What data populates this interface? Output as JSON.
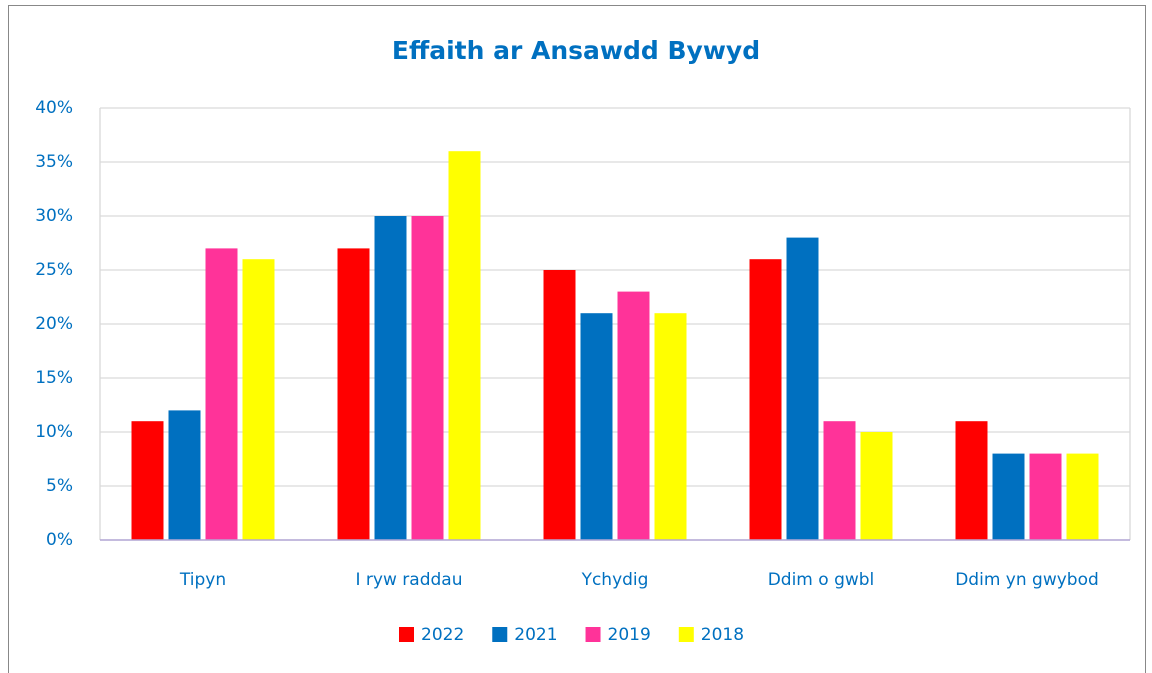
{
  "chart_data": {
    "type": "bar",
    "title": "Effaith ar Ansawdd Bywyd",
    "categories": [
      "Tipyn",
      "I ryw raddau",
      "Ychydig",
      "Ddim o gwbl",
      "Ddim yn gwybod"
    ],
    "series": [
      {
        "name": "2022",
        "color": "#ff0000",
        "values": [
          11,
          27,
          25,
          26,
          11
        ]
      },
      {
        "name": "2021",
        "color": "#0070c0",
        "values": [
          12,
          30,
          21,
          28,
          8
        ]
      },
      {
        "name": "2019",
        "color": "#ff3399",
        "values": [
          27,
          30,
          23,
          11,
          8
        ]
      },
      {
        "name": "2018",
        "color": "#ffff00",
        "values": [
          26,
          36,
          21,
          10,
          8
        ]
      }
    ],
    "ylim": [
      0,
      40
    ],
    "yticks": [
      {
        "value": 0,
        "label": "0%"
      },
      {
        "value": 5,
        "label": "5%"
      },
      {
        "value": 10,
        "label": "10%"
      },
      {
        "value": 15,
        "label": "15%"
      },
      {
        "value": 20,
        "label": "20%"
      },
      {
        "value": 25,
        "label": "25%"
      },
      {
        "value": 30,
        "label": "30%"
      },
      {
        "value": 35,
        "label": "35%"
      },
      {
        "value": 40,
        "label": "40%"
      }
    ],
    "grid": true,
    "legend": "bottom"
  }
}
